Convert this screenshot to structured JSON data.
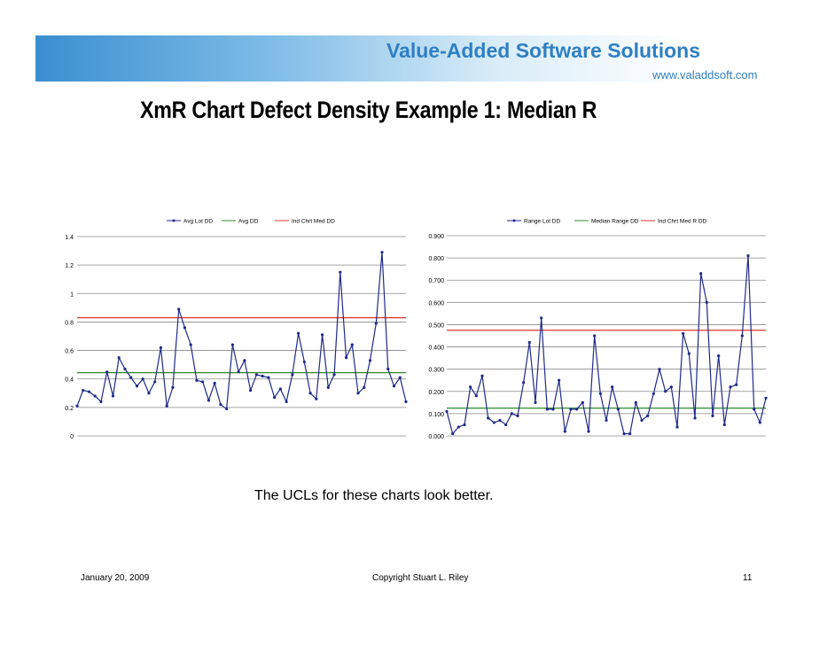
{
  "brand": {
    "name": "Value-Added Software Solutions",
    "url": "www.valaddsoft.com"
  },
  "slide": {
    "title": "XmR Chart Defect Density Example 1:  Median R",
    "caption": "The UCLs for these charts look better."
  },
  "footer": {
    "date": "January 20, 2009",
    "copyright": "Copyright    Stuart L. Riley",
    "page": "11"
  },
  "colors": {
    "series": "#1f2a8a",
    "center": "#2e8b2e",
    "ucl": "#e03030",
    "brand": "#2e7fc4"
  },
  "chart_data": [
    {
      "type": "line",
      "id": "chart-left",
      "title": "",
      "xlabel": "",
      "ylabel": "",
      "ylim": [
        0,
        1.4
      ],
      "yticks": [
        0,
        0.2,
        0.4,
        0.6,
        0.8,
        1,
        1.2,
        1.4
      ],
      "ytick_labels": [
        "0",
        "0.2",
        "0.4",
        "0.6",
        "0.8",
        "1",
        "1.2",
        "1.4"
      ],
      "grid": true,
      "legend": "top-center",
      "series": [
        {
          "name": "Avg Lot DD",
          "kind": "data",
          "values": [
            0.21,
            0.32,
            0.31,
            0.28,
            0.24,
            0.45,
            0.28,
            0.55,
            0.47,
            0.41,
            0.35,
            0.4,
            0.3,
            0.38,
            0.62,
            0.21,
            0.34,
            0.89,
            0.76,
            0.64,
            0.39,
            0.38,
            0.25,
            0.37,
            0.22,
            0.19,
            0.64,
            0.45,
            0.53,
            0.32,
            0.43,
            0.42,
            0.41,
            0.27,
            0.33,
            0.24,
            0.43,
            0.72,
            0.52,
            0.3,
            0.26,
            0.71,
            0.34,
            0.43,
            1.15,
            0.55,
            0.64,
            0.3,
            0.34,
            0.53,
            0.79,
            1.29,
            0.47,
            0.35,
            0.41,
            0.24
          ]
        },
        {
          "name": "Avg DD",
          "kind": "hline",
          "value": 0.444
        },
        {
          "name": "Ind Chrt Med DD",
          "kind": "hline",
          "value": 0.83
        }
      ]
    },
    {
      "type": "line",
      "id": "chart-right",
      "title": "",
      "xlabel": "",
      "ylabel": "",
      "ylim": [
        0,
        0.9
      ],
      "yticks": [
        0,
        0.1,
        0.2,
        0.3,
        0.4,
        0.5,
        0.6,
        0.7,
        0.8,
        0.9
      ],
      "ytick_labels": [
        "0.000",
        "0.100",
        "0.200",
        "0.300",
        "0.400",
        "0.500",
        "0.600",
        "0.700",
        "0.800",
        "0.900"
      ],
      "grid": true,
      "legend": "top-center",
      "series": [
        {
          "name": "Range Lot DD",
          "kind": "data",
          "values": [
            0.11,
            0.01,
            0.04,
            0.05,
            0.22,
            0.18,
            0.27,
            0.08,
            0.06,
            0.07,
            0.05,
            0.1,
            0.09,
            0.24,
            0.42,
            0.15,
            0.53,
            0.12,
            0.12,
            0.25,
            0.02,
            0.12,
            0.12,
            0.15,
            0.02,
            0.45,
            0.19,
            0.07,
            0.22,
            0.12,
            0.01,
            0.01,
            0.15,
            0.07,
            0.09,
            0.19,
            0.3,
            0.2,
            0.22,
            0.04,
            0.46,
            0.37,
            0.08,
            0.73,
            0.6,
            0.09,
            0.36,
            0.05,
            0.22,
            0.23,
            0.45,
            0.81,
            0.12,
            0.06,
            0.17
          ]
        },
        {
          "name": "Median Range DD",
          "kind": "hline",
          "value": 0.125
        },
        {
          "name": "Ind Chrt Med R DD",
          "kind": "hline",
          "value": 0.475
        }
      ]
    }
  ]
}
